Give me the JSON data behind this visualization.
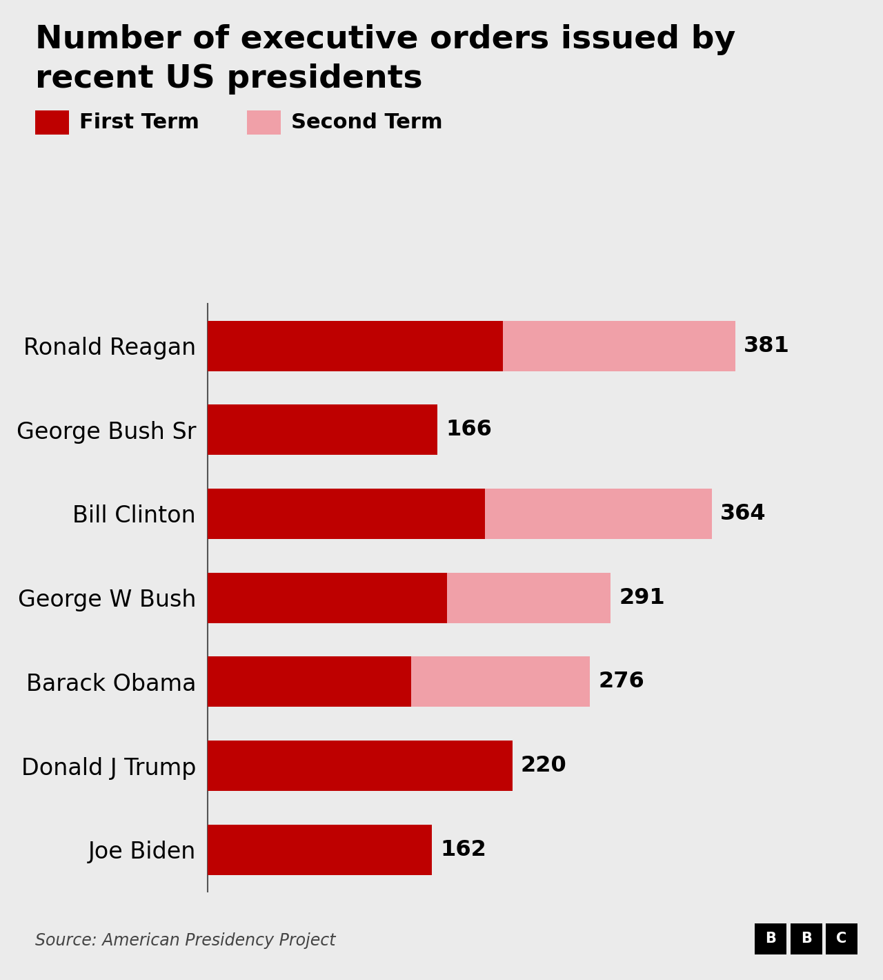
{
  "title_line1": "Number of executive orders issued by",
  "title_line2": "recent US presidents",
  "presidents": [
    "Ronald Reagan",
    "George Bush Sr",
    "Bill Clinton",
    "George W Bush",
    "Barack Obama",
    "Donald J Trump",
    "Joe Biden"
  ],
  "first_term": [
    213,
    166,
    200,
    173,
    147,
    220,
    162
  ],
  "second_term": [
    168,
    0,
    164,
    118,
    129,
    0,
    0
  ],
  "totals": [
    381,
    166,
    364,
    291,
    276,
    220,
    162
  ],
  "color_first": "#be0000",
  "color_second": "#f0a0a8",
  "bg_color": "#ebebeb",
  "source_text": "Source: American Presidency Project",
  "legend_first": "First Term",
  "legend_second": "Second Term",
  "title_fontsize": 34,
  "label_fontsize": 24,
  "value_fontsize": 23,
  "source_fontsize": 17,
  "legend_fontsize": 22
}
